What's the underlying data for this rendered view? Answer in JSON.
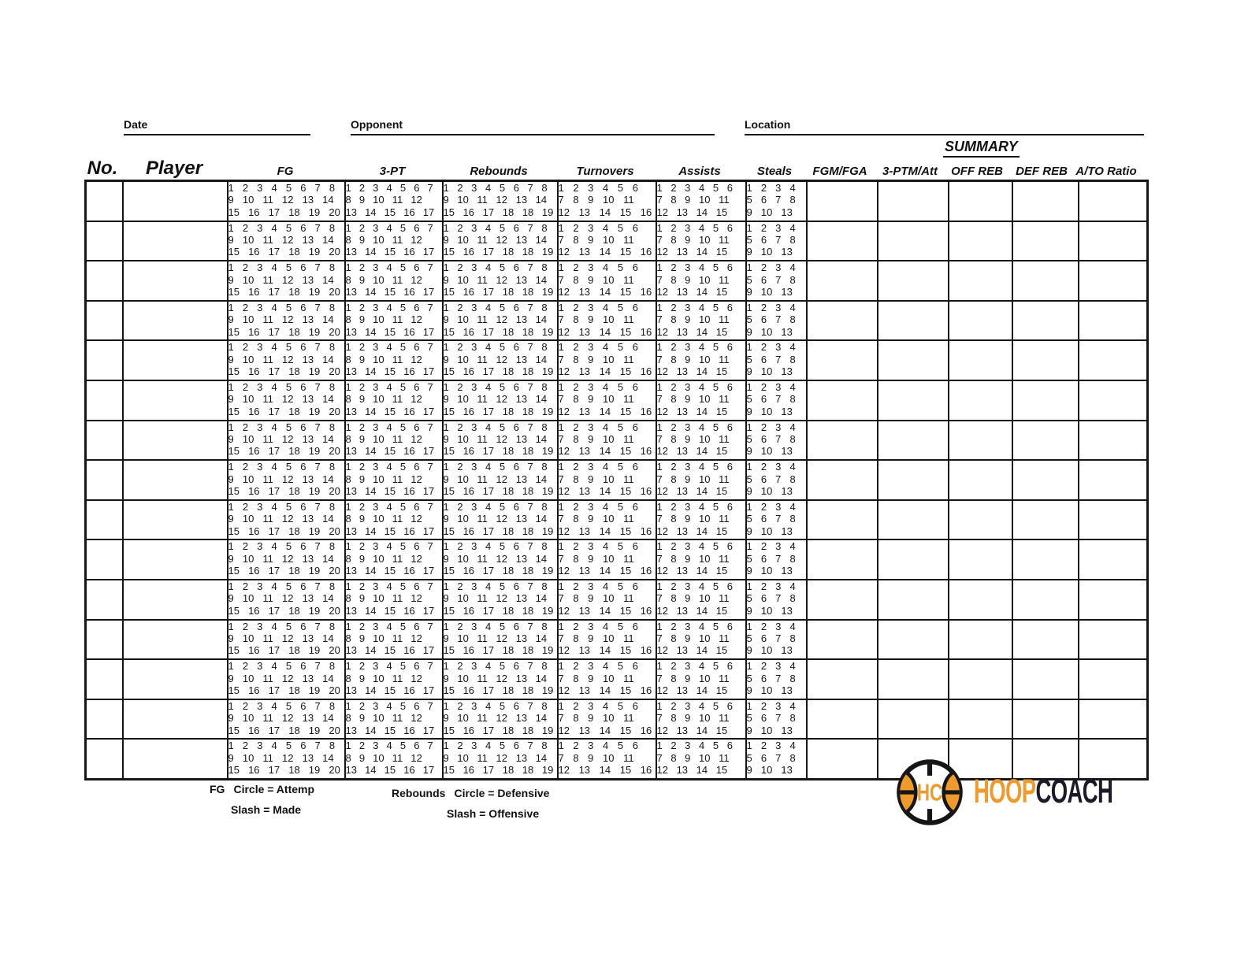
{
  "fields": {
    "date_label": "Date",
    "opponent_label": "Opponent",
    "location_label": "Location"
  },
  "summary_label": "SUMMARY",
  "table": {
    "columns": [
      "No.",
      "Player",
      "FG",
      "3-PT",
      "Rebounds",
      "Turnovers",
      "Assists",
      "Steals",
      "FGM/FGA",
      "3-PTM/Att",
      "OFF REB",
      "DEF REB",
      "A/TO Ratio"
    ],
    "row_count": 15,
    "grids": {
      "fg": [
        "1 2 3 4 5 6 7 8",
        "9 10 11 12 13 14",
        "15 16 17 18 19 20"
      ],
      "three_pt": [
        "1 2 3 4 5 6 7",
        "8 9 10 11 12",
        "13 14 15 16 17"
      ],
      "rebounds": [
        "1 2 3 4 5 6 7 8",
        "9 10 11 12 13 14",
        "15 16 17 18 18 19"
      ],
      "turnovers": [
        "1 2 3 4 5 6",
        "7 8 9 10 11",
        "12 13 14 15 16"
      ],
      "assists": [
        "1 2 3 4 5 6",
        "7 8 9 10 11",
        "12 13 14 15"
      ],
      "steals": [
        "1 2 3 4",
        "5 6 7 8",
        "9 10 13"
      ]
    }
  },
  "legend": {
    "fg_title": "FG",
    "fg_line1": "Circle = Attemp",
    "fg_line2": "Slash = Made",
    "rebounds_title": "Rebounds",
    "rebounds_line1": "Circle = Defensive",
    "rebounds_line2": "Slash = Offensive"
  },
  "logo": {
    "monogram": "HC",
    "word_primary": "HOOP",
    "word_secondary": "COACH"
  },
  "colors": {
    "orange": "#EF9A2D",
    "dark": "#1B1B28"
  }
}
